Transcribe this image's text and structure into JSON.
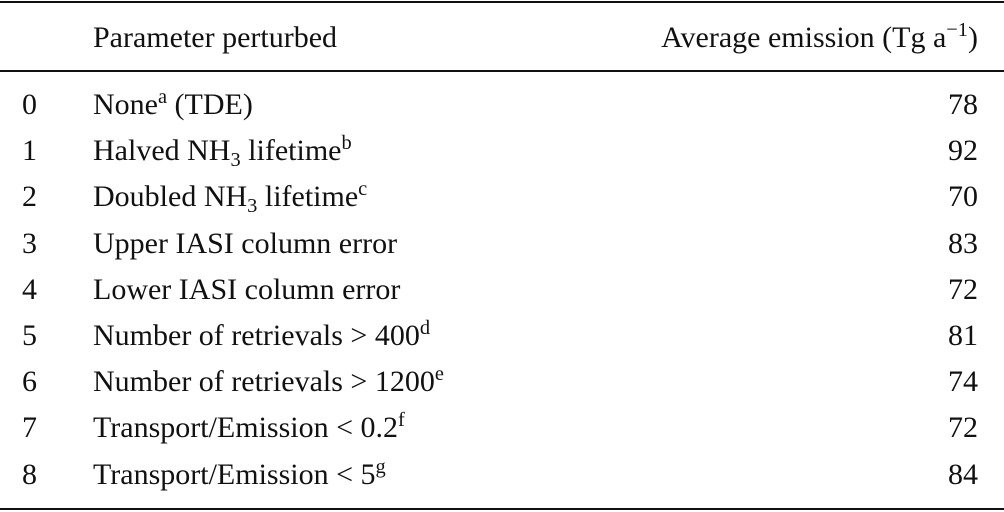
{
  "table": {
    "header": {
      "parameter": [
        {
          "text": "Parameter perturbed"
        }
      ],
      "emission": [
        {
          "text": "Average emission (Tg a"
        },
        {
          "sup": "−1"
        },
        {
          "text": ")"
        }
      ]
    },
    "rows": [
      {
        "index": 0,
        "parameter": [
          {
            "text": "None"
          },
          {
            "sup": "a"
          },
          {
            "text": " (TDE)"
          }
        ],
        "emission": 78
      },
      {
        "index": 1,
        "parameter": [
          {
            "text": "Halved NH"
          },
          {
            "sub": "3"
          },
          {
            "text": " lifetime"
          },
          {
            "sup": "b"
          }
        ],
        "emission": 92
      },
      {
        "index": 2,
        "parameter": [
          {
            "text": "Doubled NH"
          },
          {
            "sub": "3"
          },
          {
            "text": " lifetime"
          },
          {
            "sup": "c"
          }
        ],
        "emission": 70
      },
      {
        "index": 3,
        "parameter": [
          {
            "text": "Upper IASI column error"
          }
        ],
        "emission": 83
      },
      {
        "index": 4,
        "parameter": [
          {
            "text": "Lower IASI column error"
          }
        ],
        "emission": 72
      },
      {
        "index": 5,
        "parameter": [
          {
            "text": "Number of retrievals > 400"
          },
          {
            "sup": "d"
          }
        ],
        "emission": 81
      },
      {
        "index": 6,
        "parameter": [
          {
            "text": "Number of retrievals > 1200"
          },
          {
            "sup": "e"
          }
        ],
        "emission": 74
      },
      {
        "index": 7,
        "parameter": [
          {
            "text": "Transport/Emission < 0.2"
          },
          {
            "sup": "f"
          }
        ],
        "emission": 72
      },
      {
        "index": 8,
        "parameter": [
          {
            "text": "Transport/Emission < 5"
          },
          {
            "sup": "g"
          }
        ],
        "emission": 84
      }
    ]
  }
}
